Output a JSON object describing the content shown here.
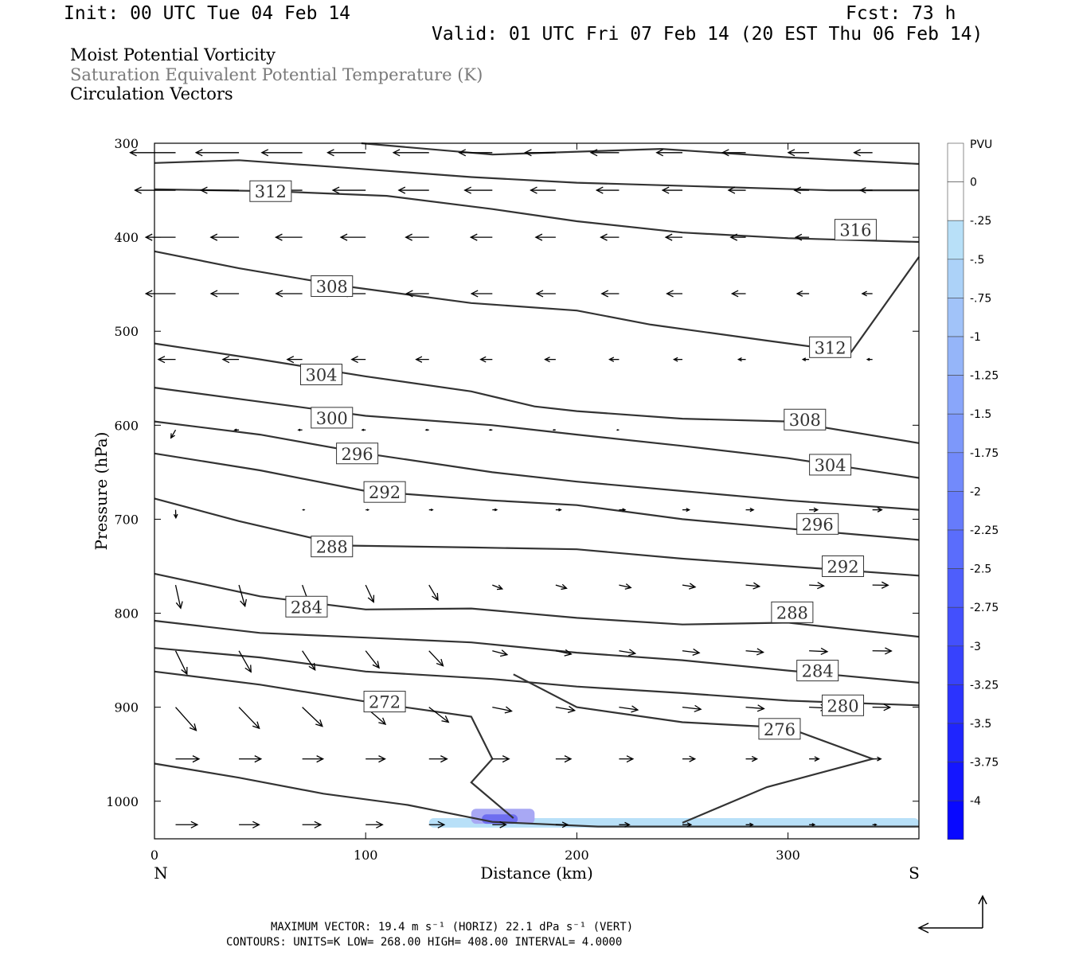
{
  "header": {
    "init": "Init: 00 UTC Tue 04 Feb 14",
    "fcst": "Fcst:   73 h",
    "valid": "Valid: 01 UTC Fri 07 Feb 14 (20 EST Thu 06 Feb 14)",
    "fields": [
      "Moist Potential Vorticity",
      "Saturation Equivalent Potential Temperature (K)",
      "Circulation Vectors"
    ]
  },
  "footer": {
    "line1": "MAXIMUM VECTOR:  19.4 m s⁻¹ (HORIZ)          22.1 dPa s⁻¹ (VERT)",
    "line2": "CONTOURS:  UNITS=K  LOW=  268.00        HIGH=  408.00        INTERVAL=     4.0000"
  },
  "chart_data": {
    "type": "cross-section",
    "xlabel": "Distance (km)",
    "ylabel": "Pressure (hPa)",
    "xlim": [
      0,
      362
    ],
    "ylim": [
      1040,
      300
    ],
    "y_scale": "linear (inverted)",
    "x_ticks": [
      0,
      100,
      200,
      300
    ],
    "y_ticks": [
      300,
      400,
      500,
      600,
      700,
      800,
      900,
      1000
    ],
    "left_end_label": "N",
    "right_end_label": "S",
    "contour_units": "K",
    "contour_interval": 4,
    "contour_low": 268,
    "contour_high": 408,
    "contour_labels": [
      {
        "value": "312",
        "x": 55,
        "p": 351
      },
      {
        "value": "316",
        "x": 332,
        "p": 392
      },
      {
        "value": "308",
        "x": 84,
        "p": 452
      },
      {
        "value": "312",
        "x": 320,
        "p": 517
      },
      {
        "value": "304",
        "x": 79,
        "p": 546
      },
      {
        "value": "300",
        "x": 84,
        "p": 592
      },
      {
        "value": "308",
        "x": 308,
        "p": 594
      },
      {
        "value": "296",
        "x": 96,
        "p": 630
      },
      {
        "value": "304",
        "x": 320,
        "p": 642
      },
      {
        "value": "292",
        "x": 109,
        "p": 671
      },
      {
        "value": "296",
        "x": 314,
        "p": 705
      },
      {
        "value": "288",
        "x": 84,
        "p": 729
      },
      {
        "value": "292",
        "x": 326,
        "p": 750
      },
      {
        "value": "284",
        "x": 72,
        "p": 793
      },
      {
        "value": "288",
        "x": 302,
        "p": 799
      },
      {
        "value": "284",
        "x": 314,
        "p": 861
      },
      {
        "value": "272",
        "x": 109,
        "p": 894
      },
      {
        "value": "280",
        "x": 326,
        "p": 898
      },
      {
        "value": "276",
        "x": 296,
        "p": 923
      }
    ],
    "isentropes": [
      {
        "points": [
          [
            0,
            321
          ],
          [
            40,
            318
          ],
          [
            90,
            326
          ],
          [
            150,
            336
          ],
          [
            200,
            342
          ],
          [
            260,
            346
          ],
          [
            320,
            350
          ],
          [
            362,
            350
          ]
        ]
      },
      {
        "points": [
          [
            0,
            349
          ],
          [
            55,
            351
          ],
          [
            110,
            356
          ],
          [
            160,
            370
          ],
          [
            200,
            383
          ],
          [
            250,
            395
          ],
          [
            300,
            401
          ],
          [
            362,
            405
          ]
        ]
      },
      {
        "points": [
          [
            0,
            415
          ],
          [
            40,
            433
          ],
          [
            90,
            452
          ],
          [
            150,
            470
          ],
          [
            200,
            478
          ],
          [
            235,
            493
          ],
          [
            290,
            510
          ],
          [
            330,
            522
          ],
          [
            362,
            421
          ]
        ]
      },
      {
        "points": [
          [
            0,
            513
          ],
          [
            50,
            530
          ],
          [
            100,
            548
          ],
          [
            150,
            564
          ],
          [
            180,
            580
          ],
          [
            200,
            585
          ],
          [
            250,
            593
          ],
          [
            300,
            596
          ],
          [
            362,
            619
          ]
        ]
      },
      {
        "points": [
          [
            0,
            560
          ],
          [
            50,
            575
          ],
          [
            100,
            590
          ],
          [
            160,
            600
          ],
          [
            200,
            610
          ],
          [
            250,
            622
          ],
          [
            300,
            635
          ],
          [
            362,
            656
          ]
        ]
      },
      {
        "points": [
          [
            0,
            596
          ],
          [
            50,
            610
          ],
          [
            100,
            630
          ],
          [
            160,
            650
          ],
          [
            200,
            660
          ],
          [
            250,
            670
          ],
          [
            300,
            680
          ],
          [
            362,
            690
          ]
        ]
      },
      {
        "points": [
          [
            0,
            630
          ],
          [
            50,
            648
          ],
          [
            100,
            670
          ],
          [
            160,
            680
          ],
          [
            200,
            685
          ],
          [
            250,
            700
          ],
          [
            300,
            710
          ],
          [
            362,
            722
          ]
        ]
      },
      {
        "points": [
          [
            0,
            678
          ],
          [
            40,
            702
          ],
          [
            90,
            728
          ],
          [
            150,
            730
          ],
          [
            200,
            732
          ],
          [
            250,
            742
          ],
          [
            300,
            750
          ],
          [
            362,
            760
          ]
        ]
      },
      {
        "points": [
          [
            0,
            758
          ],
          [
            50,
            782
          ],
          [
            100,
            796
          ],
          [
            150,
            795
          ],
          [
            200,
            805
          ],
          [
            250,
            812
          ],
          [
            300,
            810
          ],
          [
            362,
            825
          ]
        ]
      },
      {
        "points": [
          [
            0,
            808
          ],
          [
            50,
            821
          ],
          [
            100,
            826
          ],
          [
            150,
            831
          ],
          [
            200,
            842
          ],
          [
            250,
            850
          ],
          [
            300,
            861
          ],
          [
            362,
            874
          ]
        ]
      },
      {
        "points": [
          [
            0,
            837
          ],
          [
            50,
            847
          ],
          [
            100,
            862
          ],
          [
            160,
            870
          ],
          [
            200,
            878
          ],
          [
            250,
            885
          ],
          [
            300,
            893
          ],
          [
            362,
            898
          ]
        ]
      },
      {
        "points": [
          [
            0,
            862
          ],
          [
            50,
            876
          ],
          [
            100,
            894
          ],
          [
            150,
            910
          ],
          [
            160,
            955
          ],
          [
            150,
            980
          ],
          [
            170,
            1018
          ]
        ]
      },
      {
        "points": [
          [
            170,
            865
          ],
          [
            200,
            900
          ],
          [
            250,
            916
          ],
          [
            300,
            922
          ],
          [
            340,
            955
          ],
          [
            290,
            985
          ],
          [
            250,
            1023
          ]
        ]
      },
      {
        "points": [
          [
            0,
            960
          ],
          [
            40,
            975
          ],
          [
            80,
            992
          ],
          [
            120,
            1004
          ],
          [
            160,
            1022
          ],
          [
            210,
            1027
          ],
          [
            362,
            1027
          ]
        ]
      },
      {
        "points": [
          [
            98,
            300
          ],
          [
            160,
            312
          ],
          [
            240,
            306
          ],
          [
            300,
            315
          ],
          [
            362,
            322
          ]
        ]
      }
    ],
    "pvu_colorbar": {
      "unit": "PVU",
      "labels": [
        "0",
        "-.25",
        "-.5",
        "-.75",
        "-1",
        "-1.25",
        "-1.5",
        "-1.75",
        "-2",
        "-2.25",
        "-2.5",
        "-2.75",
        "-3",
        "-3.25",
        "-3.5",
        "-3.75",
        "-4"
      ]
    },
    "pv_shading": [
      {
        "x": [
          130,
          362
        ],
        "p": [
          1018,
          1028
        ],
        "level": -0.25
      },
      {
        "x": [
          150,
          180
        ],
        "p": [
          1008,
          1024
        ],
        "level": -1.0
      },
      {
        "x": [
          155,
          172
        ],
        "p": [
          1014,
          1024
        ],
        "level": -2.5
      }
    ],
    "circulation_vectors_note": "Arrows drawn for horizontal/vertical circulation; maximum vector 19.4 m/s horiz, 22.1 dPa/s vert"
  }
}
